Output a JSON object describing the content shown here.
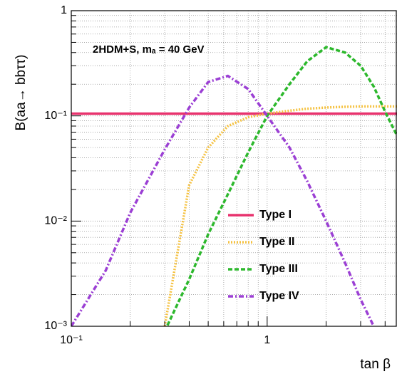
{
  "chart_data": {
    "type": "line",
    "annotation": "2HDM+S, mₐ = 40 GeV",
    "x_label": "tan β",
    "y_label": "B(aa→ bbττ)",
    "x": [
      0.1,
      0.15,
      0.2,
      0.3,
      0.4,
      0.5,
      0.63,
      0.8,
      1,
      1.3,
      1.6,
      2,
      2.5,
      3,
      3.5,
      4,
      4.6
    ],
    "series": [
      {
        "name": "Type I",
        "color": "#e8336e",
        "style": "solid",
        "values": [
          0.105,
          0.105,
          0.105,
          0.105,
          0.105,
          0.105,
          0.105,
          0.105,
          0.105,
          0.105,
          0.105,
          0.105,
          0.105,
          0.105,
          0.105,
          0.105,
          0.105
        ]
      },
      {
        "name": "Type II",
        "color": "#f5c242",
        "style": "dotted",
        "values": [
          null,
          null,
          null,
          0.001,
          0.022,
          0.05,
          0.08,
          0.097,
          0.105,
          0.112,
          0.117,
          0.12,
          0.122,
          0.123,
          0.123,
          0.123,
          0.123
        ]
      },
      {
        "name": "Type III",
        "color": "#2db82d",
        "style": "dashed",
        "values": [
          null,
          null,
          null,
          0.0009,
          0.0028,
          0.0075,
          0.018,
          0.045,
          0.1,
          0.2,
          0.33,
          0.45,
          0.4,
          0.3,
          0.19,
          0.11,
          0.065
        ]
      },
      {
        "name": "Type IV",
        "color": "#9b3fd4",
        "style": "dashdot",
        "values": [
          0.001,
          0.0034,
          0.012,
          0.048,
          0.12,
          0.21,
          0.24,
          0.18,
          0.1,
          0.05,
          0.024,
          0.01,
          0.004,
          0.0018,
          0.001,
          0.0006,
          null
        ]
      }
    ],
    "xlim": [
      0.1,
      4.6
    ],
    "ylim": [
      0.001,
      1
    ],
    "xticks": [
      {
        "value": 0.1,
        "label": "10⁻¹"
      },
      1
    ],
    "yticks": [
      {
        "value": 0.001,
        "label": "10⁻³"
      },
      {
        "value": 0.01,
        "label": "10⁻²"
      },
      {
        "value": 0.1,
        "label": "10⁻¹"
      },
      1
    ],
    "xminorticks": [
      0.2,
      0.3,
      0.4,
      0.5,
      0.6,
      0.7,
      0.8,
      0.9,
      2,
      3,
      4
    ],
    "yminorticks": [
      0.002,
      0.003,
      0.004,
      0.005,
      0.006,
      0.007,
      0.008,
      0.009,
      0.02,
      0.03,
      0.04,
      0.05,
      0.06,
      0.07,
      0.08,
      0.09,
      0.2,
      0.3,
      0.4,
      0.5,
      0.6,
      0.7,
      0.8,
      0.9
    ],
    "xlog": true,
    "ylog": true,
    "grid": true,
    "legend": "lower center"
  }
}
